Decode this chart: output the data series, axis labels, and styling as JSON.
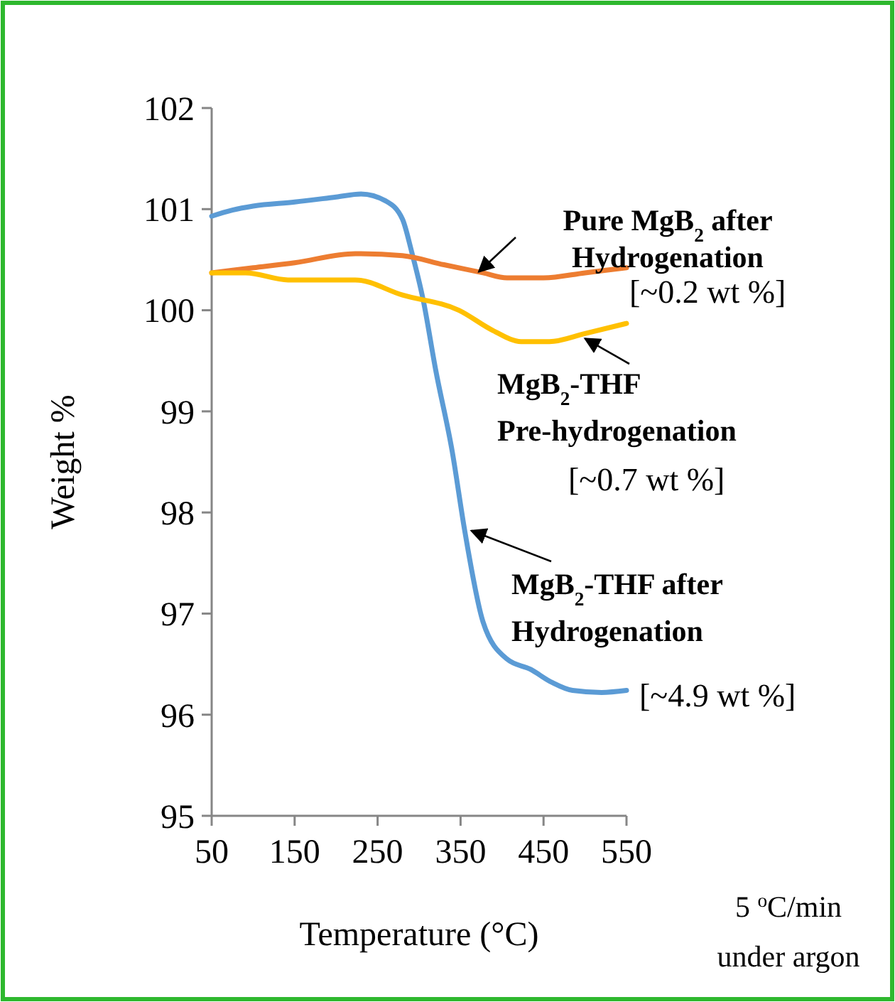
{
  "chart_data": {
    "type": "line",
    "xlabel": "Temperature (°C)",
    "ylabel": "Weight %",
    "xlim": [
      50,
      550
    ],
    "xticks": [
      50,
      150,
      250,
      350,
      450,
      550
    ],
    "ylim": [
      95,
      102
    ],
    "yticks": [
      95,
      96,
      97,
      98,
      99,
      100,
      101,
      102
    ],
    "grid": false,
    "marker": "none",
    "line_style": "solid",
    "series": [
      {
        "color": "#5b9bd5",
        "x": [
          50,
          75,
          100,
          150,
          200,
          230,
          260,
          280,
          291,
          305,
          320,
          340,
          355,
          377,
          406,
          434,
          460,
          485,
          520,
          550
        ],
        "values": [
          100.93,
          100.99,
          101.03,
          101.07,
          101.12,
          101.15,
          101.08,
          100.9,
          100.58,
          100.1,
          99.41,
          98.6,
          97.82,
          96.92,
          96.55,
          96.45,
          96.32,
          96.24,
          96.22,
          96.24
        ]
      },
      {
        "color": "#ed7d31",
        "x": [
          50,
          100,
          150,
          223,
          280,
          330,
          377,
          406,
          450,
          500,
          550
        ],
        "values": [
          100.37,
          100.42,
          100.47,
          100.56,
          100.54,
          100.45,
          100.37,
          100.32,
          100.32,
          100.37,
          100.42
        ]
      },
      {
        "color": "#ffc000",
        "x": [
          50,
          91,
          142,
          223,
          280,
          348,
          389,
          423,
          457,
          500,
          550
        ],
        "values": [
          100.37,
          100.37,
          100.3,
          100.3,
          100.15,
          100.0,
          99.8,
          99.69,
          99.69,
          99.77,
          99.87
        ]
      }
    ],
    "annotations": [
      {
        "text": "Pure MgB$_{2}$ after",
        "x": 372,
        "y": 100.38
      },
      "Hydrogenation",
      "[~0.2 wt %]",
      {
        "text": "MgB$_{2}$-THF",
        "x": 500,
        "y": 99.72
      },
      "Pre-hydrogenation",
      "[~0.7 wt %]",
      {
        "text": "MgB$_{2}$-THF after",
        "x": 363,
        "y": 97.82
      },
      "Hydrogenation",
      "[~4.9 wt %]",
      "5 $^{o}$C/min",
      "under argon"
    ]
  }
}
